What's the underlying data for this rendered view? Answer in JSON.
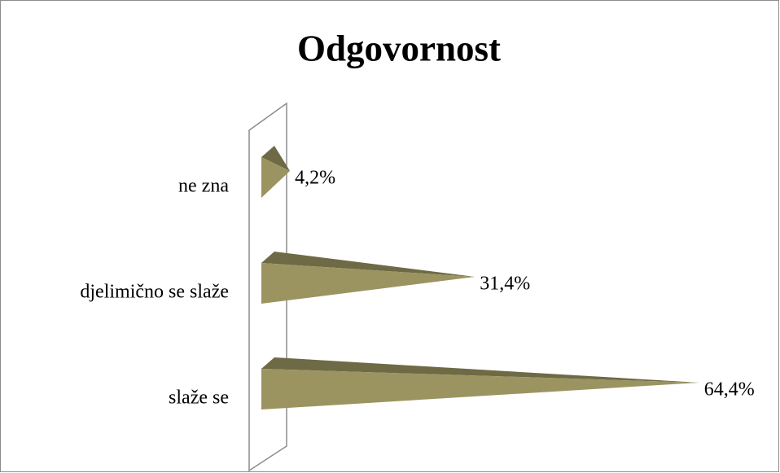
{
  "chart_data": {
    "type": "bar",
    "title": "Odgovornost",
    "categories": [
      "ne zna",
      "djelimično se slaže",
      "slaže se"
    ],
    "values": [
      4.2,
      31.4,
      64.4
    ],
    "value_labels": [
      "4,2%",
      "31,4%",
      "64,4%"
    ],
    "color": "#9b9461"
  }
}
